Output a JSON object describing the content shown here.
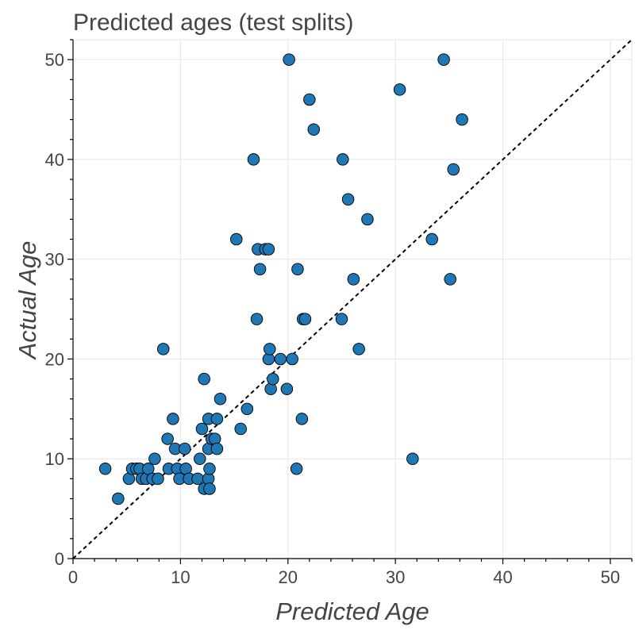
{
  "chart_data": {
    "type": "scatter",
    "title": "Predicted ages (test splits)",
    "xlabel": "Predicted Age",
    "ylabel": "Actual Age",
    "xlim": [
      0,
      52
    ],
    "ylim": [
      0,
      52
    ],
    "xticks": [
      0,
      10,
      20,
      30,
      40,
      50
    ],
    "yticks": [
      0,
      10,
      20,
      30,
      40,
      50
    ],
    "grid": true,
    "point_color": "#1f77b4",
    "reference_line": "y = x (dashed)",
    "points": [
      {
        "x": 3.0,
        "y": 9
      },
      {
        "x": 4.2,
        "y": 6
      },
      {
        "x": 5.2,
        "y": 8
      },
      {
        "x": 5.5,
        "y": 9
      },
      {
        "x": 5.9,
        "y": 9
      },
      {
        "x": 6.2,
        "y": 9
      },
      {
        "x": 6.4,
        "y": 8
      },
      {
        "x": 6.8,
        "y": 8
      },
      {
        "x": 7.0,
        "y": 9
      },
      {
        "x": 7.4,
        "y": 8
      },
      {
        "x": 7.6,
        "y": 10
      },
      {
        "x": 7.9,
        "y": 8
      },
      {
        "x": 8.4,
        "y": 21
      },
      {
        "x": 8.8,
        "y": 12
      },
      {
        "x": 8.9,
        "y": 9
      },
      {
        "x": 9.3,
        "y": 14
      },
      {
        "x": 9.5,
        "y": 11
      },
      {
        "x": 9.7,
        "y": 9
      },
      {
        "x": 9.9,
        "y": 8
      },
      {
        "x": 10.4,
        "y": 11
      },
      {
        "x": 10.5,
        "y": 9
      },
      {
        "x": 10.8,
        "y": 8
      },
      {
        "x": 11.6,
        "y": 8
      },
      {
        "x": 11.8,
        "y": 10
      },
      {
        "x": 12.0,
        "y": 13
      },
      {
        "x": 12.2,
        "y": 18
      },
      {
        "x": 12.2,
        "y": 7
      },
      {
        "x": 12.6,
        "y": 14
      },
      {
        "x": 12.6,
        "y": 11
      },
      {
        "x": 12.6,
        "y": 8
      },
      {
        "x": 12.7,
        "y": 7
      },
      {
        "x": 12.7,
        "y": 9
      },
      {
        "x": 12.9,
        "y": 12
      },
      {
        "x": 13.2,
        "y": 12
      },
      {
        "x": 13.4,
        "y": 14
      },
      {
        "x": 13.4,
        "y": 11
      },
      {
        "x": 13.7,
        "y": 16
      },
      {
        "x": 15.2,
        "y": 32
      },
      {
        "x": 15.6,
        "y": 13
      },
      {
        "x": 16.2,
        "y": 15
      },
      {
        "x": 16.8,
        "y": 40
      },
      {
        "x": 17.1,
        "y": 24
      },
      {
        "x": 17.2,
        "y": 31
      },
      {
        "x": 17.4,
        "y": 29
      },
      {
        "x": 17.9,
        "y": 31
      },
      {
        "x": 18.2,
        "y": 31
      },
      {
        "x": 18.2,
        "y": 20
      },
      {
        "x": 18.3,
        "y": 21
      },
      {
        "x": 18.4,
        "y": 17
      },
      {
        "x": 18.6,
        "y": 18
      },
      {
        "x": 19.3,
        "y": 20
      },
      {
        "x": 19.9,
        "y": 17
      },
      {
        "x": 20.1,
        "y": 50
      },
      {
        "x": 20.4,
        "y": 20
      },
      {
        "x": 20.8,
        "y": 9
      },
      {
        "x": 20.9,
        "y": 29
      },
      {
        "x": 21.3,
        "y": 14
      },
      {
        "x": 21.4,
        "y": 24
      },
      {
        "x": 21.6,
        "y": 24
      },
      {
        "x": 22.0,
        "y": 46
      },
      {
        "x": 22.4,
        "y": 43
      },
      {
        "x": 25.0,
        "y": 24
      },
      {
        "x": 25.1,
        "y": 40
      },
      {
        "x": 25.6,
        "y": 36
      },
      {
        "x": 26.1,
        "y": 28
      },
      {
        "x": 26.6,
        "y": 21
      },
      {
        "x": 27.4,
        "y": 34
      },
      {
        "x": 30.4,
        "y": 47
      },
      {
        "x": 31.6,
        "y": 10
      },
      {
        "x": 33.4,
        "y": 32
      },
      {
        "x": 34.5,
        "y": 50
      },
      {
        "x": 35.1,
        "y": 28
      },
      {
        "x": 35.4,
        "y": 39
      },
      {
        "x": 36.2,
        "y": 44
      }
    ]
  }
}
